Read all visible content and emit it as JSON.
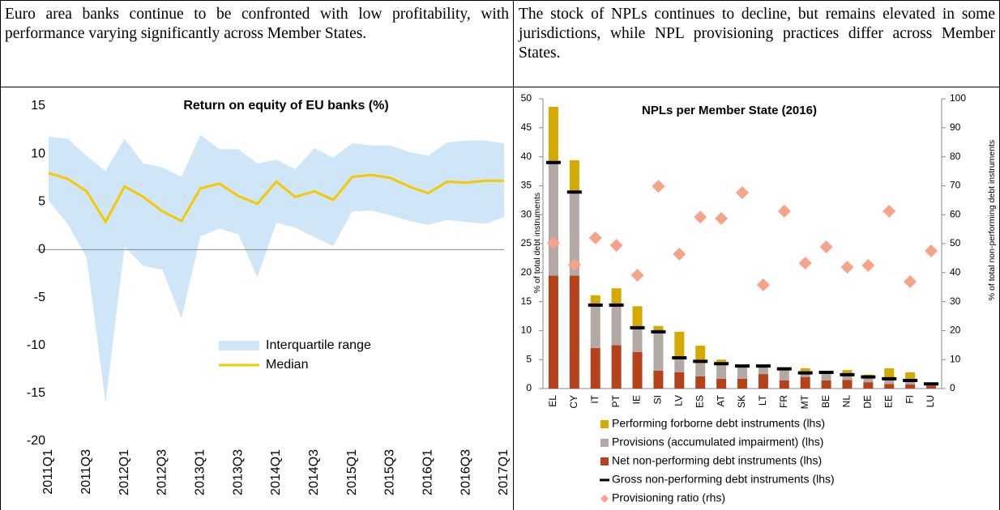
{
  "header_cells": [
    "Euro area banks continue to be confronted with low profitability, with performance varying significantly across Member States.",
    "The stock of NPLs continues to decline, but remains elevated in some jurisdictions, while NPL provisioning practices differ across Member States."
  ],
  "chart_data": [
    {
      "type": "line",
      "title": "Return on equity of EU banks (%)",
      "categories": [
        "2011Q1",
        null,
        "2011Q3",
        null,
        "2012Q1",
        null,
        "2012Q3",
        null,
        "2013Q1",
        null,
        "2013Q3",
        null,
        "2014Q1",
        null,
        "2014Q3",
        null,
        "2015Q1",
        null,
        "2015Q3",
        null,
        "2016Q1",
        null,
        "2016Q3",
        null,
        "2017Q1"
      ],
      "ylim": [
        -20,
        15
      ],
      "yticks": [
        -20,
        -15,
        -10,
        -5,
        0,
        5,
        10,
        15
      ],
      "series": [
        {
          "name": "Interquartile range",
          "type": "band",
          "color": "#cfe6f8",
          "high": [
            11.8,
            11.6,
            9.8,
            8.2,
            11.6,
            9.0,
            8.6,
            7.6,
            12.0,
            10.5,
            10.5,
            9.0,
            9.4,
            8.4,
            10.6,
            9.6,
            11.1,
            10.9,
            10.9,
            10.2,
            9.8,
            11.2,
            11.4,
            11.4,
            11.1
          ],
          "low": [
            5.1,
            2.7,
            -0.8,
            -16.0,
            0.3,
            -1.7,
            -2.1,
            -7.2,
            1.4,
            2.2,
            1.6,
            -2.9,
            2.8,
            2.3,
            1.3,
            0.4,
            4.0,
            4.1,
            3.6,
            3.0,
            2.6,
            3.1,
            2.9,
            2.7,
            3.4
          ]
        },
        {
          "name": "Median",
          "type": "line",
          "color": "#f5c800",
          "values": [
            8.0,
            7.4,
            6.1,
            2.9,
            6.6,
            5.5,
            4.0,
            3.0,
            6.4,
            6.9,
            5.6,
            4.8,
            7.1,
            5.5,
            6.1,
            5.2,
            7.6,
            7.8,
            7.5,
            6.6,
            5.9,
            7.1,
            7.0,
            7.2,
            7.2
          ]
        }
      ]
    },
    {
      "type": "bar",
      "title": "NPLs per Member State (2016)",
      "stacked": true,
      "y_label": "% of total debt instruments",
      "y2_label": "% of total non-performing debt instruments",
      "categories": [
        "EL",
        "CY",
        "IT",
        "PT",
        "IE",
        "SI",
        "LV",
        "ES",
        "AT",
        "SK",
        "LT",
        "FR",
        "MT",
        "BE",
        "NL",
        "DE",
        "EE",
        "FI",
        "LU"
      ],
      "ylim": [
        0,
        50
      ],
      "yticks": [
        0,
        5,
        10,
        15,
        20,
        25,
        30,
        35,
        40,
        45,
        50
      ],
      "y2lim": [
        0,
        100
      ],
      "y2ticks": [
        0,
        10,
        20,
        30,
        40,
        50,
        60,
        70,
        80,
        90,
        100
      ],
      "series": [
        {
          "name": "Performing forborne debt instruments (lhs)",
          "type": "bar",
          "marker": "square",
          "color": "#d4aa00",
          "values": [
            9.6,
            5.5,
            1.7,
            2.9,
            3.7,
            1.0,
            4.5,
            2.7,
            0.7,
            0.1,
            0.1,
            0.2,
            0.8,
            0.1,
            0.8,
            0.4,
            1.8,
            1.4,
            0.2
          ]
        },
        {
          "name": "Provisions (accumulated impairment) (lhs)",
          "type": "bar",
          "marker": "square",
          "color": "#b3a9a4",
          "values": [
            19.5,
            14.4,
            7.4,
            6.9,
            4.2,
            6.7,
            2.5,
            2.6,
            2.6,
            2.2,
            1.4,
            2.0,
            0.7,
            1.4,
            0.9,
            0.9,
            0.9,
            0.7,
            0.3
          ]
        },
        {
          "name": "Net non-performing debt instruments (lhs)",
          "type": "bar",
          "marker": "square",
          "color": "#b5421b",
          "values": [
            19.5,
            19.5,
            7.0,
            7.5,
            6.3,
            3.1,
            2.8,
            2.1,
            1.7,
            1.7,
            2.5,
            1.4,
            2.0,
            1.4,
            1.5,
            1.1,
            0.8,
            0.7,
            0.5
          ]
        },
        {
          "name": "Gross non-performing debt instruments (lhs)",
          "type": "dash",
          "marker": "dash",
          "color": "#000000",
          "values": [
            39.0,
            33.9,
            14.4,
            14.4,
            10.5,
            9.8,
            5.3,
            4.7,
            4.3,
            3.9,
            3.9,
            3.4,
            2.7,
            2.8,
            2.4,
            2.0,
            1.7,
            1.4,
            0.8
          ]
        },
        {
          "name": "Provisioning ratio (rhs)",
          "type": "scatter",
          "marker": "diamond",
          "axis": "y2",
          "color": "#f6a38a",
          "values": [
            50.3,
            42.7,
            52.0,
            49.4,
            39.1,
            69.8,
            46.4,
            59.2,
            58.7,
            67.6,
            35.8,
            61.2,
            43.3,
            48.9,
            41.9,
            42.5,
            61.2,
            36.9,
            47.5
          ]
        }
      ]
    }
  ]
}
